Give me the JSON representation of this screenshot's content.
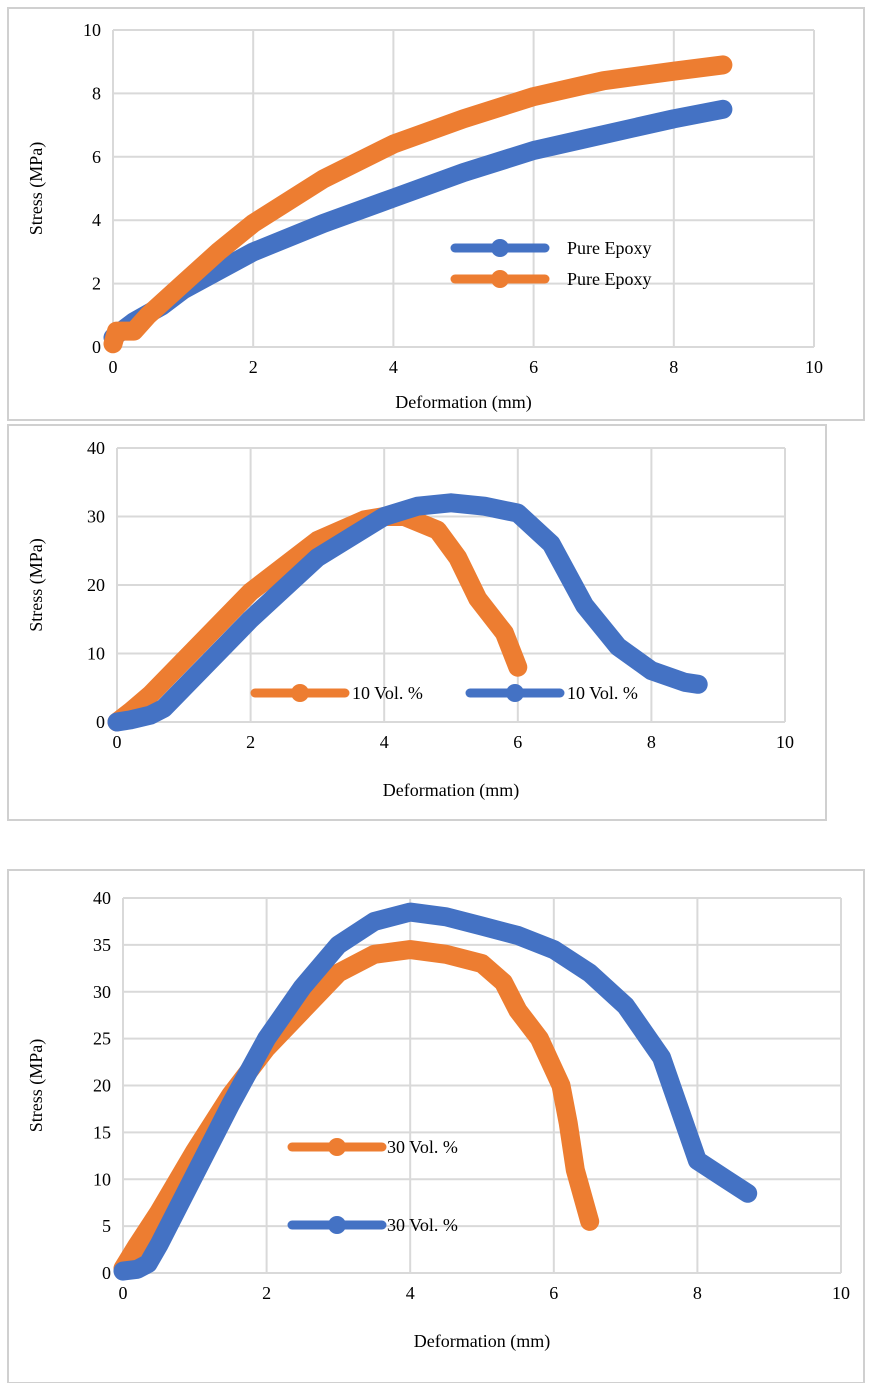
{
  "chart_data": [
    {
      "type": "line",
      "xlabel": "Deformation (mm)",
      "ylabel": "Stress (MPa)",
      "xlim": [
        0,
        10
      ],
      "ylim": [
        0,
        10
      ],
      "x_ticks": [
        0,
        2,
        4,
        6,
        8,
        10
      ],
      "y_ticks": [
        0,
        2,
        4,
        6,
        8,
        10
      ],
      "x_tick_labels": [
        "0",
        "2",
        "4",
        "6",
        "8",
        "10"
      ],
      "y_tick_labels": [
        "0",
        "2",
        "4",
        "6",
        "8",
        "10"
      ],
      "grid": true,
      "legend_position": "inside, lower-right",
      "series": [
        {
          "name": "Pure Epoxy",
          "color": "#4472c4",
          "points": [
            [
              0,
              0.3
            ],
            [
              0.3,
              0.8
            ],
            [
              0.7,
              1.3
            ],
            [
              1,
              1.8
            ],
            [
              1.5,
              2.4
            ],
            [
              2,
              3.0
            ],
            [
              3,
              3.9
            ],
            [
              4,
              4.7
            ],
            [
              5,
              5.5
            ],
            [
              6,
              6.2
            ],
            [
              7,
              6.7
            ],
            [
              8,
              7.2
            ],
            [
              8.7,
              7.5
            ]
          ]
        },
        {
          "name": "Pure Epoxy",
          "color": "#ed7d31",
          "points": [
            [
              0,
              0.1
            ],
            [
              0.05,
              0.5
            ],
            [
              0.3,
              0.5
            ],
            [
              0.5,
              1.0
            ],
            [
              1,
              2.0
            ],
            [
              1.5,
              3.0
            ],
            [
              2,
              3.9
            ],
            [
              3,
              5.3
            ],
            [
              4,
              6.4
            ],
            [
              5,
              7.2
            ],
            [
              6,
              7.9
            ],
            [
              7,
              8.4
            ],
            [
              8,
              8.7
            ],
            [
              8.7,
              8.9
            ]
          ]
        }
      ]
    },
    {
      "type": "line",
      "xlabel": "Deformation (mm)",
      "ylabel": "Stress (MPa)",
      "xlim": [
        0,
        10
      ],
      "ylim": [
        0,
        40
      ],
      "x_ticks": [
        0,
        2,
        4,
        6,
        8,
        10
      ],
      "y_ticks": [
        0,
        10,
        20,
        30,
        40
      ],
      "x_tick_labels": [
        "0",
        "2",
        "4",
        "6",
        "8",
        "10"
      ],
      "y_tick_labels": [
        "0",
        "10",
        "20",
        "30",
        "40"
      ],
      "grid": true,
      "legend_position": "inside, bottom",
      "series": [
        {
          "name": "10 Vol. %",
          "color": "#ed7d31",
          "points": [
            [
              0,
              0
            ],
            [
              0.2,
              1.5
            ],
            [
              0.5,
              4
            ],
            [
              1,
              9
            ],
            [
              2,
              19
            ],
            [
              3,
              26.5
            ],
            [
              3.7,
              29.5
            ],
            [
              4,
              30
            ],
            [
              4.3,
              30
            ],
            [
              4.8,
              28
            ],
            [
              5.1,
              24
            ],
            [
              5.4,
              18
            ],
            [
              5.8,
              13
            ],
            [
              6,
              8
            ]
          ]
        },
        {
          "name": "10 Vol. %",
          "color": "#4472c4",
          "points": [
            [
              0,
              0
            ],
            [
              0.2,
              0.3
            ],
            [
              0.5,
              1
            ],
            [
              0.7,
              2
            ],
            [
              1,
              5
            ],
            [
              2,
              15
            ],
            [
              3,
              24
            ],
            [
              4,
              30
            ],
            [
              4.5,
              31.5
            ],
            [
              5,
              32
            ],
            [
              5.5,
              31.5
            ],
            [
              6,
              30.5
            ],
            [
              6.5,
              26
            ],
            [
              7,
              17
            ],
            [
              7.5,
              11
            ],
            [
              8,
              7.5
            ],
            [
              8.5,
              5.8
            ],
            [
              8.7,
              5.5
            ]
          ]
        }
      ]
    },
    {
      "type": "line",
      "xlabel": "Deformation (mm)",
      "ylabel": "Stress (MPa)",
      "xlim": [
        0,
        10
      ],
      "ylim": [
        0,
        40
      ],
      "x_ticks": [
        0,
        2,
        4,
        6,
        8,
        10
      ],
      "y_ticks": [
        0,
        5,
        10,
        15,
        20,
        25,
        30,
        35,
        40
      ],
      "x_tick_labels": [
        "0",
        "2",
        "4",
        "6",
        "8",
        "10"
      ],
      "y_tick_labels": [
        "0",
        "5",
        "10",
        "15",
        "20",
        "25",
        "30",
        "35",
        "40"
      ],
      "grid": true,
      "legend_position": "inside, center-left",
      "series": [
        {
          "name": "30 Vol. %",
          "color": "#ed7d31",
          "points": [
            [
              0,
              0.5
            ],
            [
              0.2,
              3
            ],
            [
              0.5,
              6.5
            ],
            [
              1,
              13
            ],
            [
              1.5,
              19
            ],
            [
              2,
              24
            ],
            [
              2.5,
              28
            ],
            [
              3,
              32
            ],
            [
              3.5,
              34
            ],
            [
              4,
              34.5
            ],
            [
              4.5,
              34
            ],
            [
              5,
              33
            ],
            [
              5.3,
              31
            ],
            [
              5.5,
              28
            ],
            [
              5.8,
              25
            ],
            [
              6.1,
              20
            ],
            [
              6.2,
              16
            ],
            [
              6.3,
              11
            ],
            [
              6.5,
              5.5
            ]
          ]
        },
        {
          "name": "30 Vol. %",
          "color": "#4472c4",
          "points": [
            [
              0,
              0.2
            ],
            [
              0.2,
              0.4
            ],
            [
              0.35,
              1
            ],
            [
              0.5,
              3
            ],
            [
              1,
              10.5
            ],
            [
              1.5,
              18
            ],
            [
              2,
              25
            ],
            [
              2.5,
              30.5
            ],
            [
              3,
              35
            ],
            [
              3.5,
              37.5
            ],
            [
              4,
              38.5
            ],
            [
              4.5,
              38
            ],
            [
              5,
              37
            ],
            [
              5.5,
              36
            ],
            [
              6,
              34.5
            ],
            [
              6.5,
              32
            ],
            [
              7,
              28.5
            ],
            [
              7.5,
              23
            ],
            [
              8,
              12
            ],
            [
              8.4,
              10
            ],
            [
              8.7,
              8.5
            ]
          ]
        }
      ]
    }
  ]
}
